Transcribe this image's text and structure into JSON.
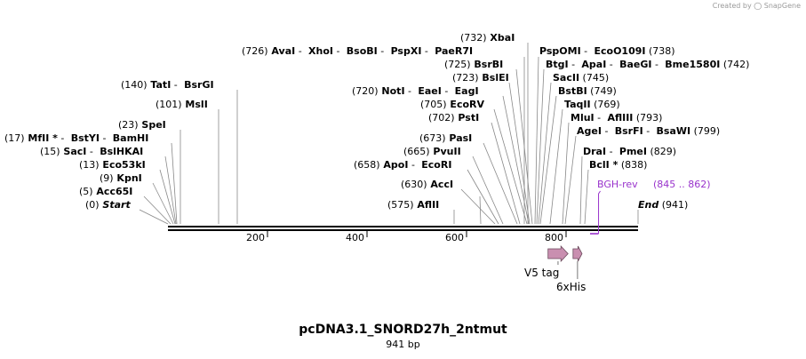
{
  "credit": {
    "prefix": "Created by",
    "brand": "SnapGene"
  },
  "plasmid": {
    "name": "pcDNA3.1_SNORD27h_2ntmut",
    "length": "941 bp"
  },
  "sequence": {
    "start": 1,
    "end": 941,
    "ticks": [
      "200",
      "400",
      "600",
      "800"
    ]
  },
  "site_rows": [
    {
      "parts": [
        {
          "t": "(726)",
          "k": "pos"
        },
        {
          "t": "AvaI",
          "k": "enz"
        },
        {
          "t": "-",
          "k": "sep"
        },
        {
          "t": "XhoI",
          "k": "enz"
        },
        {
          "t": "-",
          "k": "sep"
        },
        {
          "t": "BsoBI",
          "k": "enz"
        },
        {
          "t": "-",
          "k": "sep"
        },
        {
          "t": "PspXI",
          "k": "enz"
        },
        {
          "t": "-",
          "k": "sep"
        },
        {
          "t": "PaeR7I",
          "k": "enz"
        }
      ]
    },
    {
      "parts": [
        {
          "t": "(140)",
          "k": "pos"
        },
        {
          "t": "TatI",
          "k": "enz"
        },
        {
          "t": "-",
          "k": "sep"
        },
        {
          "t": "BsrGI",
          "k": "enz"
        }
      ]
    },
    {
      "parts": [
        {
          "t": "(101)",
          "k": "pos"
        },
        {
          "t": "MslI",
          "k": "enz"
        }
      ]
    },
    {
      "parts": [
        {
          "t": "(23)",
          "k": "pos"
        },
        {
          "t": "SpeI",
          "k": "enz"
        }
      ]
    },
    {
      "parts": [
        {
          "t": "(17)",
          "k": "pos"
        },
        {
          "t": "MfII *",
          "k": "enz"
        },
        {
          "t": "-",
          "k": "sep"
        },
        {
          "t": "BstYI",
          "k": "enz"
        },
        {
          "t": "-",
          "k": "sep"
        },
        {
          "t": "BamHI",
          "k": "enz"
        }
      ]
    },
    {
      "parts": [
        {
          "t": "(15)",
          "k": "pos"
        },
        {
          "t": "SacI",
          "k": "enz"
        },
        {
          "t": "-",
          "k": "sep"
        },
        {
          "t": "BslHKAI",
          "k": "enz"
        }
      ]
    },
    {
      "parts": [
        {
          "t": "(13)",
          "k": "pos"
        },
        {
          "t": "Eco53kI",
          "k": "enz"
        }
      ]
    },
    {
      "parts": [
        {
          "t": "(9)",
          "k": "pos"
        },
        {
          "t": "KpnI",
          "k": "enz"
        }
      ]
    },
    {
      "parts": [
        {
          "t": "(5)",
          "k": "pos"
        },
        {
          "t": "Acc65I",
          "k": "enz"
        }
      ]
    },
    {
      "parts": [
        {
          "t": "(0)",
          "k": "pos"
        },
        {
          "t": "Start",
          "k": "ends"
        }
      ]
    },
    {
      "parts": [
        {
          "t": "(732)",
          "k": "pos"
        },
        {
          "t": "XbaI",
          "k": "enz"
        }
      ]
    },
    {
      "parts": [
        {
          "t": "(725)",
          "k": "pos"
        },
        {
          "t": "BsrBI",
          "k": "enz"
        }
      ]
    },
    {
      "parts": [
        {
          "t": "(723)",
          "k": "pos"
        },
        {
          "t": "BslEI",
          "k": "enz"
        }
      ]
    },
    {
      "parts": [
        {
          "t": "(720)",
          "k": "pos"
        },
        {
          "t": "NotI",
          "k": "enz"
        },
        {
          "t": "-",
          "k": "sep"
        },
        {
          "t": "EaeI",
          "k": "enz"
        },
        {
          "t": "-",
          "k": "sep"
        },
        {
          "t": "EagI",
          "k": "enz"
        }
      ]
    },
    {
      "parts": [
        {
          "t": "(705)",
          "k": "pos"
        },
        {
          "t": "EcoRV",
          "k": "enz"
        }
      ]
    },
    {
      "parts": [
        {
          "t": "(702)",
          "k": "pos"
        },
        {
          "t": "PstI",
          "k": "enz"
        }
      ]
    },
    {
      "parts": [
        {
          "t": "(673)",
          "k": "pos"
        },
        {
          "t": "PasI",
          "k": "enz"
        }
      ]
    },
    {
      "parts": [
        {
          "t": "(665)",
          "k": "pos"
        },
        {
          "t": "PvuII",
          "k": "enz"
        }
      ]
    },
    {
      "parts": [
        {
          "t": "(658)",
          "k": "pos"
        },
        {
          "t": "ApoI",
          "k": "enz"
        },
        {
          "t": "-",
          "k": "sep"
        },
        {
          "t": "EcoRI",
          "k": "enz"
        }
      ]
    },
    {
      "parts": [
        {
          "t": "(630)",
          "k": "pos"
        },
        {
          "t": "AccI",
          "k": "enz"
        }
      ]
    },
    {
      "parts": [
        {
          "t": "(575)",
          "k": "pos"
        },
        {
          "t": "AflII",
          "k": "enz"
        }
      ]
    },
    {
      "parts": [
        {
          "t": "PspOMI",
          "k": "enz"
        },
        {
          "t": "-",
          "k": "sep"
        },
        {
          "t": "EcoO109I",
          "k": "enz"
        },
        {
          "t": "(738)",
          "k": "pos"
        }
      ]
    },
    {
      "parts": [
        {
          "t": "BtgI",
          "k": "enz"
        },
        {
          "t": "-",
          "k": "sep"
        },
        {
          "t": "ApaI",
          "k": "enz"
        },
        {
          "t": "-",
          "k": "sep"
        },
        {
          "t": "BaeGI",
          "k": "enz"
        },
        {
          "t": "-",
          "k": "sep"
        },
        {
          "t": "Bme1580I",
          "k": "enz"
        },
        {
          "t": "(742)",
          "k": "pos"
        }
      ]
    },
    {
      "parts": [
        {
          "t": "SacII",
          "k": "enz"
        },
        {
          "t": "(745)",
          "k": "pos"
        }
      ]
    },
    {
      "parts": [
        {
          "t": "BstBI",
          "k": "enz"
        },
        {
          "t": "(749)",
          "k": "pos"
        }
      ]
    },
    {
      "parts": [
        {
          "t": "TaqII",
          "k": "enz"
        },
        {
          "t": "(769)",
          "k": "pos"
        }
      ]
    },
    {
      "parts": [
        {
          "t": "MluI",
          "k": "enz"
        },
        {
          "t": "-",
          "k": "sep"
        },
        {
          "t": "AflIII",
          "k": "enz"
        },
        {
          "t": "(793)",
          "k": "pos"
        }
      ]
    },
    {
      "parts": [
        {
          "t": "AgeI",
          "k": "enz"
        },
        {
          "t": "-",
          "k": "sep"
        },
        {
          "t": "BsrFI",
          "k": "enz"
        },
        {
          "t": "-",
          "k": "sep"
        },
        {
          "t": "BsaWI",
          "k": "enz"
        },
        {
          "t": "(799)",
          "k": "pos"
        }
      ]
    },
    {
      "parts": [
        {
          "t": "DraI",
          "k": "enz"
        },
        {
          "t": "-",
          "k": "sep"
        },
        {
          "t": "PmeI",
          "k": "enz"
        },
        {
          "t": "(829)",
          "k": "pos"
        }
      ]
    },
    {
      "parts": [
        {
          "t": "BclI *",
          "k": "enz"
        },
        {
          "t": "(838)",
          "k": "pos"
        }
      ]
    },
    {
      "parts": [
        {
          "t": "End",
          "k": "ends"
        },
        {
          "t": "(941)",
          "k": "pos"
        }
      ]
    }
  ],
  "primer": {
    "name": "BGH-rev",
    "range": "(845 .. 862)",
    "start": 845,
    "end": 862,
    "color": "#9933cc"
  },
  "features": [
    {
      "name": "V5 tag",
      "start": 761,
      "end": 801,
      "color": "#c98fb0"
    },
    {
      "name": "6xHis",
      "start": 811,
      "end": 829,
      "color": "#c98fb0"
    }
  ],
  "colors": {
    "backbone": "#000000",
    "leader": "#888888",
    "text": "#000000",
    "muted": "#666666"
  }
}
